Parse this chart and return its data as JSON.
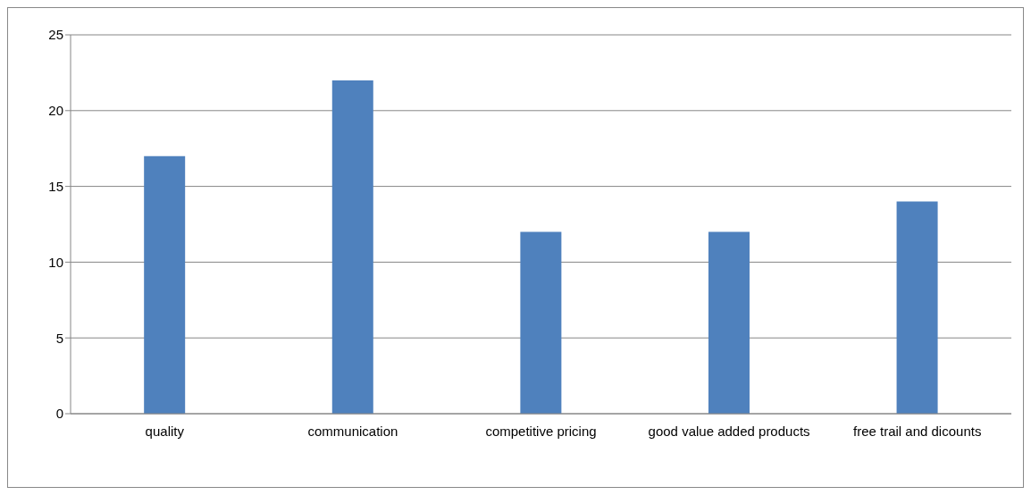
{
  "chart_data": {
    "type": "bar",
    "categories": [
      "quality",
      "communication",
      "competitive pricing",
      "good value added products",
      "free trail and dicounts"
    ],
    "values": [
      17,
      22,
      12,
      12,
      14
    ],
    "color": "#4f81bd",
    "ylim": [
      0,
      25
    ],
    "yticks": [
      0,
      5,
      10,
      15,
      20,
      25
    ],
    "grid": "y",
    "legend": false
  }
}
